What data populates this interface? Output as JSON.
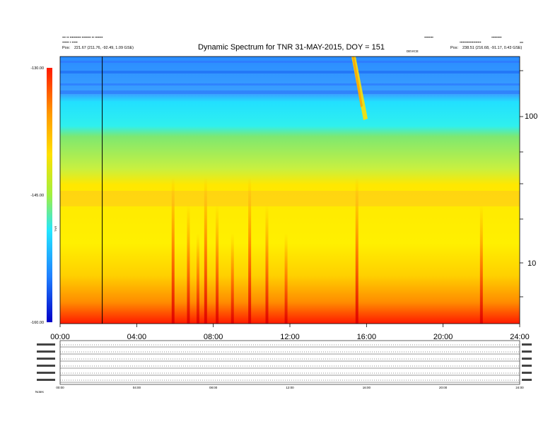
{
  "header": {
    "title": "Dynamic Spectrum for TNR 31-MAY-2015, DOY = 151",
    "left_pos_label": "Pos:",
    "left_pos_value": "221.67 (211.76, -92.49, 1.09 GSE)",
    "right_pos_label": "Pos:",
    "right_pos_value": "238.51 (216.68, -91.17, 0.43 GSE)",
    "center_small": "DEVICE"
  },
  "colorbar": {
    "label": "TNR",
    "ticks": [
      "-130.00",
      "-145.00",
      "-160.00"
    ],
    "stops": [
      "#ff1a00",
      "#ff9900",
      "#ffe000",
      "#e8f020",
      "#22e6ff",
      "#2080ff",
      "#0000c8"
    ]
  },
  "chart_data": {
    "type": "heatmap",
    "title": "Dynamic Spectrum for TNR 31-MAY-2015, DOY = 151",
    "x_ticks": [
      "00:00",
      "04:00",
      "08:00",
      "12:00",
      "16:00",
      "20:00",
      "24:00"
    ],
    "xlim": [
      0,
      24
    ],
    "y_ticks": [
      "100",
      "10"
    ],
    "y_scale": "log",
    "colorbar_range": [
      -160,
      -130
    ],
    "features": {
      "vertical_line_hour": 2.2,
      "type3_burst_hour": 15.3,
      "intense_bursts_hours": [
        5.9,
        6.7,
        7.2,
        7.6,
        8.2,
        9.0,
        9.9,
        10.8,
        11.8,
        15.5,
        22.0
      ]
    }
  },
  "footer_ticks": [
    "00:00",
    "04:00",
    "08:00",
    "12:00",
    "16:00",
    "20:00",
    "24:00"
  ],
  "small_label": "Notes"
}
